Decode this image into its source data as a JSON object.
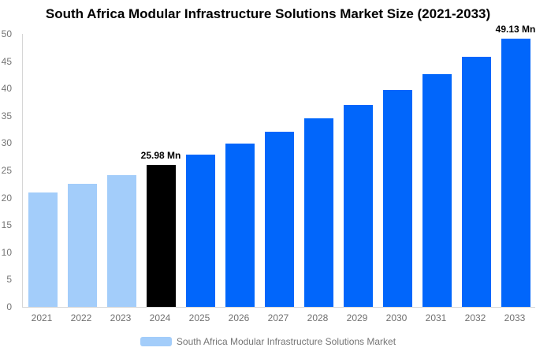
{
  "header": {
    "title": "South Africa Modular Infrastructure Solutions Market Size (2021-2033)"
  },
  "chart_data": {
    "type": "bar",
    "title": "South Africa Modular Infrastructure Solutions Market Size (2021-2033)",
    "categories": [
      "2021",
      "2022",
      "2023",
      "2024",
      "2025",
      "2026",
      "2027",
      "2028",
      "2029",
      "2030",
      "2031",
      "2032",
      "2033"
    ],
    "values": [
      21.01,
      22.55,
      24.2,
      25.98,
      27.89,
      29.93,
      32.13,
      34.49,
      37.02,
      39.73,
      42.65,
      45.78,
      49.13
    ],
    "bar_roles": [
      "historical",
      "historical",
      "historical",
      "base_year",
      "forecast",
      "forecast",
      "forecast",
      "forecast",
      "forecast",
      "forecast",
      "forecast",
      "forecast",
      "forecast"
    ],
    "series_colors": {
      "historical": "#a3cdfa",
      "base_year": "#000000",
      "forecast": "#0166fb"
    },
    "unit": "Mn",
    "xlabel": "",
    "ylabel": "",
    "ylim": [
      0,
      50
    ],
    "yticks": [
      0,
      5,
      10,
      15,
      20,
      25,
      30,
      35,
      40,
      45,
      50
    ],
    "grid": false,
    "axis_color": "#d6d6d6",
    "tick_label_color": "#757575",
    "annotations": [
      {
        "category": "2024",
        "text": "25.98 Mn"
      },
      {
        "category": "2033",
        "text": "49.13 Mn"
      }
    ],
    "legend": {
      "position": "bottom-center",
      "items": [
        {
          "label": "South Africa Modular Infrastructure Solutions Market",
          "swatch_color": "#a3cdfa"
        }
      ]
    }
  }
}
